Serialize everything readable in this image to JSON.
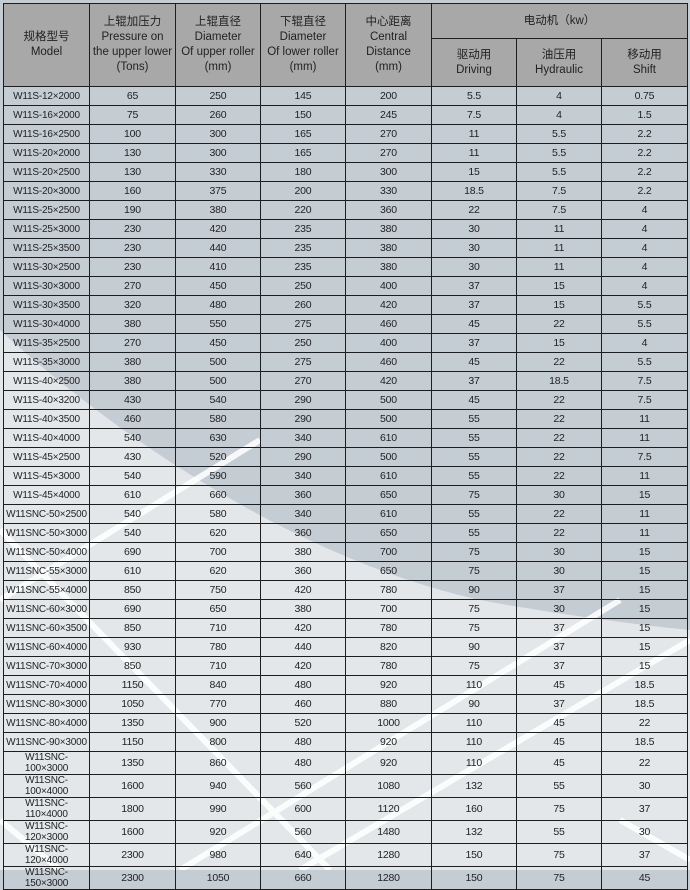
{
  "header": {
    "model": {
      "cn": "规格型号",
      "en": "Model"
    },
    "pressure": {
      "cn": "上辊加压力",
      "en1": "Pressure on",
      "en2": "the upper lower",
      "unit": "(Tons)"
    },
    "upper_diameter": {
      "cn": "上辊直径",
      "en1": "Diameter",
      "en2": "Of upper roller",
      "unit": "(mm)"
    },
    "lower_diameter": {
      "cn": "下辊直径",
      "en1": "Diameter",
      "en2": "Of lower roller",
      "unit": "(mm)"
    },
    "central_distance": {
      "cn": "中心距离",
      "en1": "Central",
      "en2": "Distance",
      "unit": "(mm)"
    },
    "motor": "电动机（kw）",
    "driving": {
      "cn": "驱动用",
      "en": "Driving"
    },
    "hydraulic": {
      "cn": "油压用",
      "en": "Hydraulic"
    },
    "shift": {
      "cn": "移动用",
      "en": "Shift"
    }
  },
  "colors": {
    "header_bg": "#a8a8a8",
    "body_bg": "#c4ccd4",
    "light_bg": "#e6e9eb",
    "border": "#1e1e1e"
  },
  "rows": [
    [
      "W11S-12×2000",
      "65",
      "250",
      "145",
      "200",
      "5.5",
      "4",
      "0.75"
    ],
    [
      "W11S-16×2000",
      "75",
      "260",
      "150",
      "245",
      "7.5",
      "4",
      "1.5"
    ],
    [
      "W11S-16×2500",
      "100",
      "300",
      "165",
      "270",
      "11",
      "5.5",
      "2.2"
    ],
    [
      "W11S-20×2000",
      "130",
      "300",
      "165",
      "270",
      "11",
      "5.5",
      "2.2"
    ],
    [
      "W11S-20×2500",
      "130",
      "330",
      "180",
      "300",
      "15",
      "5.5",
      "2.2"
    ],
    [
      "W11S-20×3000",
      "160",
      "375",
      "200",
      "330",
      "18.5",
      "7.5",
      "2.2"
    ],
    [
      "W11S-25×2500",
      "190",
      "380",
      "220",
      "360",
      "22",
      "7.5",
      "4"
    ],
    [
      "W11S-25×3000",
      "230",
      "420",
      "235",
      "380",
      "30",
      "11",
      "4"
    ],
    [
      "W11S-25×3500",
      "230",
      "440",
      "235",
      "380",
      "30",
      "11",
      "4"
    ],
    [
      "W11S-30×2500",
      "230",
      "410",
      "235",
      "380",
      "30",
      "11",
      "4"
    ],
    [
      "W11S-30×3000",
      "270",
      "450",
      "250",
      "400",
      "37",
      "15",
      "4"
    ],
    [
      "W11S-30×3500",
      "320",
      "480",
      "260",
      "420",
      "37",
      "15",
      "5.5"
    ],
    [
      "W11S-30×4000",
      "380",
      "550",
      "275",
      "460",
      "45",
      "22",
      "5.5"
    ],
    [
      "W11S-35×2500",
      "270",
      "450",
      "250",
      "400",
      "37",
      "15",
      "4"
    ],
    [
      "W11S-35×3000",
      "380",
      "500",
      "275",
      "460",
      "45",
      "22",
      "5.5"
    ],
    [
      "W11S-40×2500",
      "380",
      "500",
      "270",
      "420",
      "37",
      "18.5",
      "7.5"
    ],
    [
      "W11S-40×3200",
      "430",
      "540",
      "290",
      "500",
      "45",
      "22",
      "7.5"
    ],
    [
      "W11S-40×3500",
      "460",
      "580",
      "290",
      "500",
      "55",
      "22",
      "11"
    ],
    [
      "W11S-40×4000",
      "540",
      "630",
      "340",
      "610",
      "55",
      "22",
      "11"
    ],
    [
      "W11S-45×2500",
      "430",
      "520",
      "290",
      "500",
      "55",
      "22",
      "7.5"
    ],
    [
      "W11S-45×3000",
      "540",
      "590",
      "340",
      "610",
      "55",
      "22",
      "11"
    ],
    [
      "W11S-45×4000",
      "610",
      "660",
      "360",
      "650",
      "75",
      "30",
      "15"
    ],
    [
      "W11SNC-50×2500",
      "540",
      "580",
      "340",
      "610",
      "55",
      "22",
      "11"
    ],
    [
      "W11SNC-50×3000",
      "540",
      "620",
      "360",
      "650",
      "55",
      "22",
      "11"
    ],
    [
      "W11SNC-50×4000",
      "690",
      "700",
      "380",
      "700",
      "75",
      "30",
      "15"
    ],
    [
      "W11SNC-55×3000",
      "610",
      "620",
      "360",
      "650",
      "75",
      "30",
      "15"
    ],
    [
      "W11SNC-55×4000",
      "850",
      "750",
      "420",
      "780",
      "90",
      "37",
      "15"
    ],
    [
      "W11SNC-60×3000",
      "690",
      "650",
      "380",
      "700",
      "75",
      "30",
      "15"
    ],
    [
      "W11SNC-60×3500",
      "850",
      "710",
      "420",
      "780",
      "75",
      "37",
      "15"
    ],
    [
      "W11SNC-60×4000",
      "930",
      "780",
      "440",
      "820",
      "90",
      "37",
      "15"
    ],
    [
      "W11SNC-70×3000",
      "850",
      "710",
      "420",
      "780",
      "75",
      "37",
      "15"
    ],
    [
      "W11SNC-70×4000",
      "1150",
      "840",
      "480",
      "920",
      "110",
      "45",
      "18.5"
    ],
    [
      "W11SNC-80×3000",
      "1050",
      "770",
      "460",
      "880",
      "90",
      "37",
      "18.5"
    ],
    [
      "W11SNC-80×4000",
      "1350",
      "900",
      "520",
      "1000",
      "110",
      "45",
      "22"
    ],
    [
      "W11SNC-90×3000",
      "1150",
      "800",
      "480",
      "920",
      "110",
      "45",
      "18.5"
    ],
    [
      "W11SNC-100×3000",
      "1350",
      "860",
      "480",
      "920",
      "110",
      "45",
      "22"
    ],
    [
      "W11SNC-100×4000",
      "1600",
      "940",
      "560",
      "1080",
      "132",
      "55",
      "30"
    ],
    [
      "W11SNC-110×4000",
      "1800",
      "990",
      "600",
      "1120",
      "160",
      "75",
      "37"
    ],
    [
      "W11SNC-120×3000",
      "1600",
      "920",
      "560",
      "1480",
      "132",
      "55",
      "30"
    ],
    [
      "W11SNC-120×4000",
      "2300",
      "980",
      "640",
      "1280",
      "150",
      "75",
      "37"
    ],
    [
      "W11SNC-150×3000",
      "2300",
      "1050",
      "660",
      "1280",
      "150",
      "75",
      "45"
    ]
  ]
}
